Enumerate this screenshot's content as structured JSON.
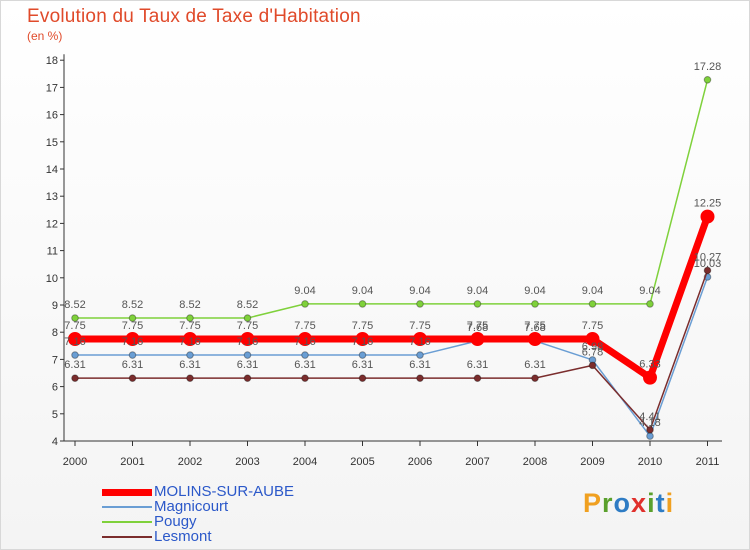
{
  "title": "Evolution du Taux de Taxe d'Habitation",
  "unit": "(en %)",
  "logo": {
    "letters": [
      "P",
      "r",
      "o",
      "x",
      "i",
      "t",
      "i"
    ],
    "colors": [
      "#f0a020",
      "#5aa02c",
      "#2e7cc4",
      "#e0302c",
      "#5aa02c",
      "#2e7cc4",
      "#f0a020"
    ]
  },
  "chart_data": {
    "type": "line",
    "title": "Evolution du Taux de Taxe d'Habitation",
    "ylabel": "(en %)",
    "xlabel": "",
    "x": [
      "2000",
      "2001",
      "2002",
      "2003",
      "2004",
      "2005",
      "2006",
      "2007",
      "2008",
      "2009",
      "2010",
      "2011"
    ],
    "ylim": [
      4,
      18
    ],
    "yticks": [
      4,
      5,
      6,
      7,
      8,
      9,
      10,
      11,
      12,
      13,
      14,
      15,
      16,
      17,
      18
    ],
    "grid": false,
    "legend_position": "bottom-left",
    "series": [
      {
        "name": "Pougy",
        "color": "#7fd13b",
        "values": [
          8.52,
          8.52,
          8.52,
          8.52,
          9.04,
          9.04,
          9.04,
          9.04,
          9.04,
          9.04,
          9.04,
          17.28
        ],
        "labels": [
          "8.52",
          "8.52",
          "8.52",
          "8.52",
          "9.04",
          "9.04",
          "9.04",
          "9.04",
          "9.04",
          "9.04",
          "9.04",
          "17.28"
        ]
      },
      {
        "name": "Magnicourt",
        "color": "#6a9ed4",
        "values": [
          7.16,
          7.16,
          7.16,
          7.16,
          7.16,
          7.16,
          7.16,
          7.68,
          7.68,
          6.98,
          4.18,
          10.03
        ],
        "labels": [
          "7.16",
          "7.16",
          "7.16",
          "7.16",
          "7.16",
          "7.16",
          "7.16",
          "7.68",
          "7.68",
          "6.98",
          "4.18",
          "10.03"
        ]
      },
      {
        "name": "Lesmont",
        "color": "#7b2d2d",
        "values": [
          6.31,
          6.31,
          6.31,
          6.31,
          6.31,
          6.31,
          6.31,
          6.31,
          6.31,
          6.78,
          4.41,
          10.27
        ],
        "labels": [
          "6.31",
          "6.31",
          "6.31",
          "6.31",
          "6.31",
          "6.31",
          "6.31",
          "6.31",
          "6.31",
          "6.78",
          "4.41",
          "10.27"
        ]
      },
      {
        "name": "MOLINS-SUR-AUBE",
        "color": "#ff0000",
        "values": [
          7.75,
          7.75,
          7.75,
          7.75,
          7.75,
          7.75,
          7.75,
          7.75,
          7.75,
          7.75,
          6.33,
          12.25
        ],
        "labels": [
          "7.75",
          "7.75",
          "7.75",
          "7.75",
          "7.75",
          "7.75",
          "7.75",
          "7.75",
          "7.75",
          "7.75",
          "6.33",
          "12.25"
        ]
      }
    ],
    "legend": [
      {
        "name": "MOLINS-SUR-AUBE",
        "color": "#ff0000",
        "width": 7
      },
      {
        "name": "Magnicourt",
        "color": "#6a9ed4",
        "width": 2
      },
      {
        "name": "Pougy",
        "color": "#7fd13b",
        "width": 2
      },
      {
        "name": "Lesmont",
        "color": "#7b2d2d",
        "width": 2
      }
    ]
  }
}
